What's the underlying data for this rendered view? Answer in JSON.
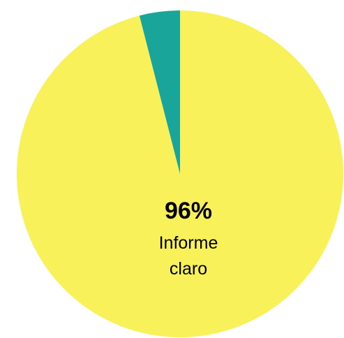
{
  "chart_data": {
    "type": "pie",
    "slices": [
      {
        "value": 96,
        "color": "#F9F15A"
      },
      {
        "value": 4,
        "color": "#1AA59A"
      }
    ],
    "data_labels": [
      {
        "slice": 0,
        "value_text": "96%",
        "text_lines": [
          "Informe",
          "claro"
        ]
      }
    ]
  }
}
